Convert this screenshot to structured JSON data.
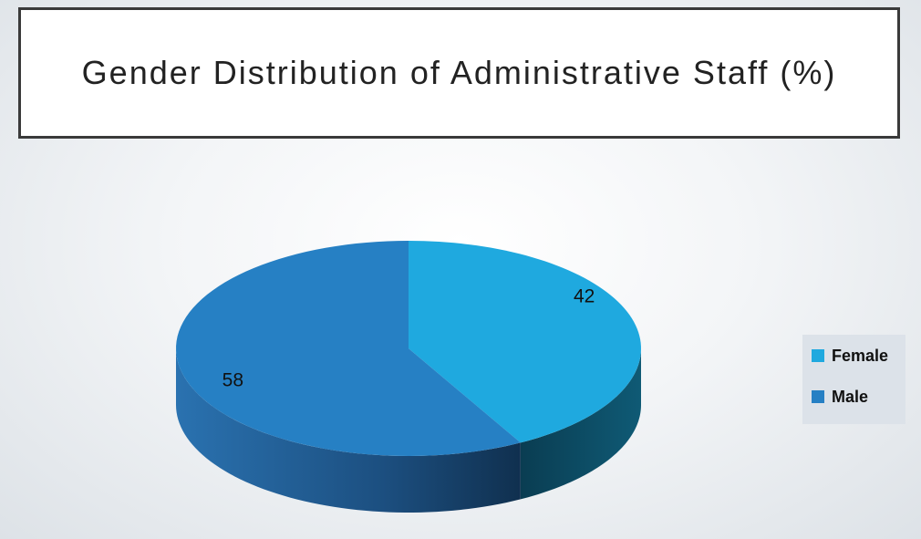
{
  "chart_data": {
    "type": "pie",
    "title": "Gender Distribution of Administrative Staff (%)",
    "categories": [
      "Female",
      "Male"
    ],
    "values": [
      42,
      58
    ],
    "colors": [
      "#1fa9df",
      "#2680c4"
    ],
    "legend": "right"
  }
}
